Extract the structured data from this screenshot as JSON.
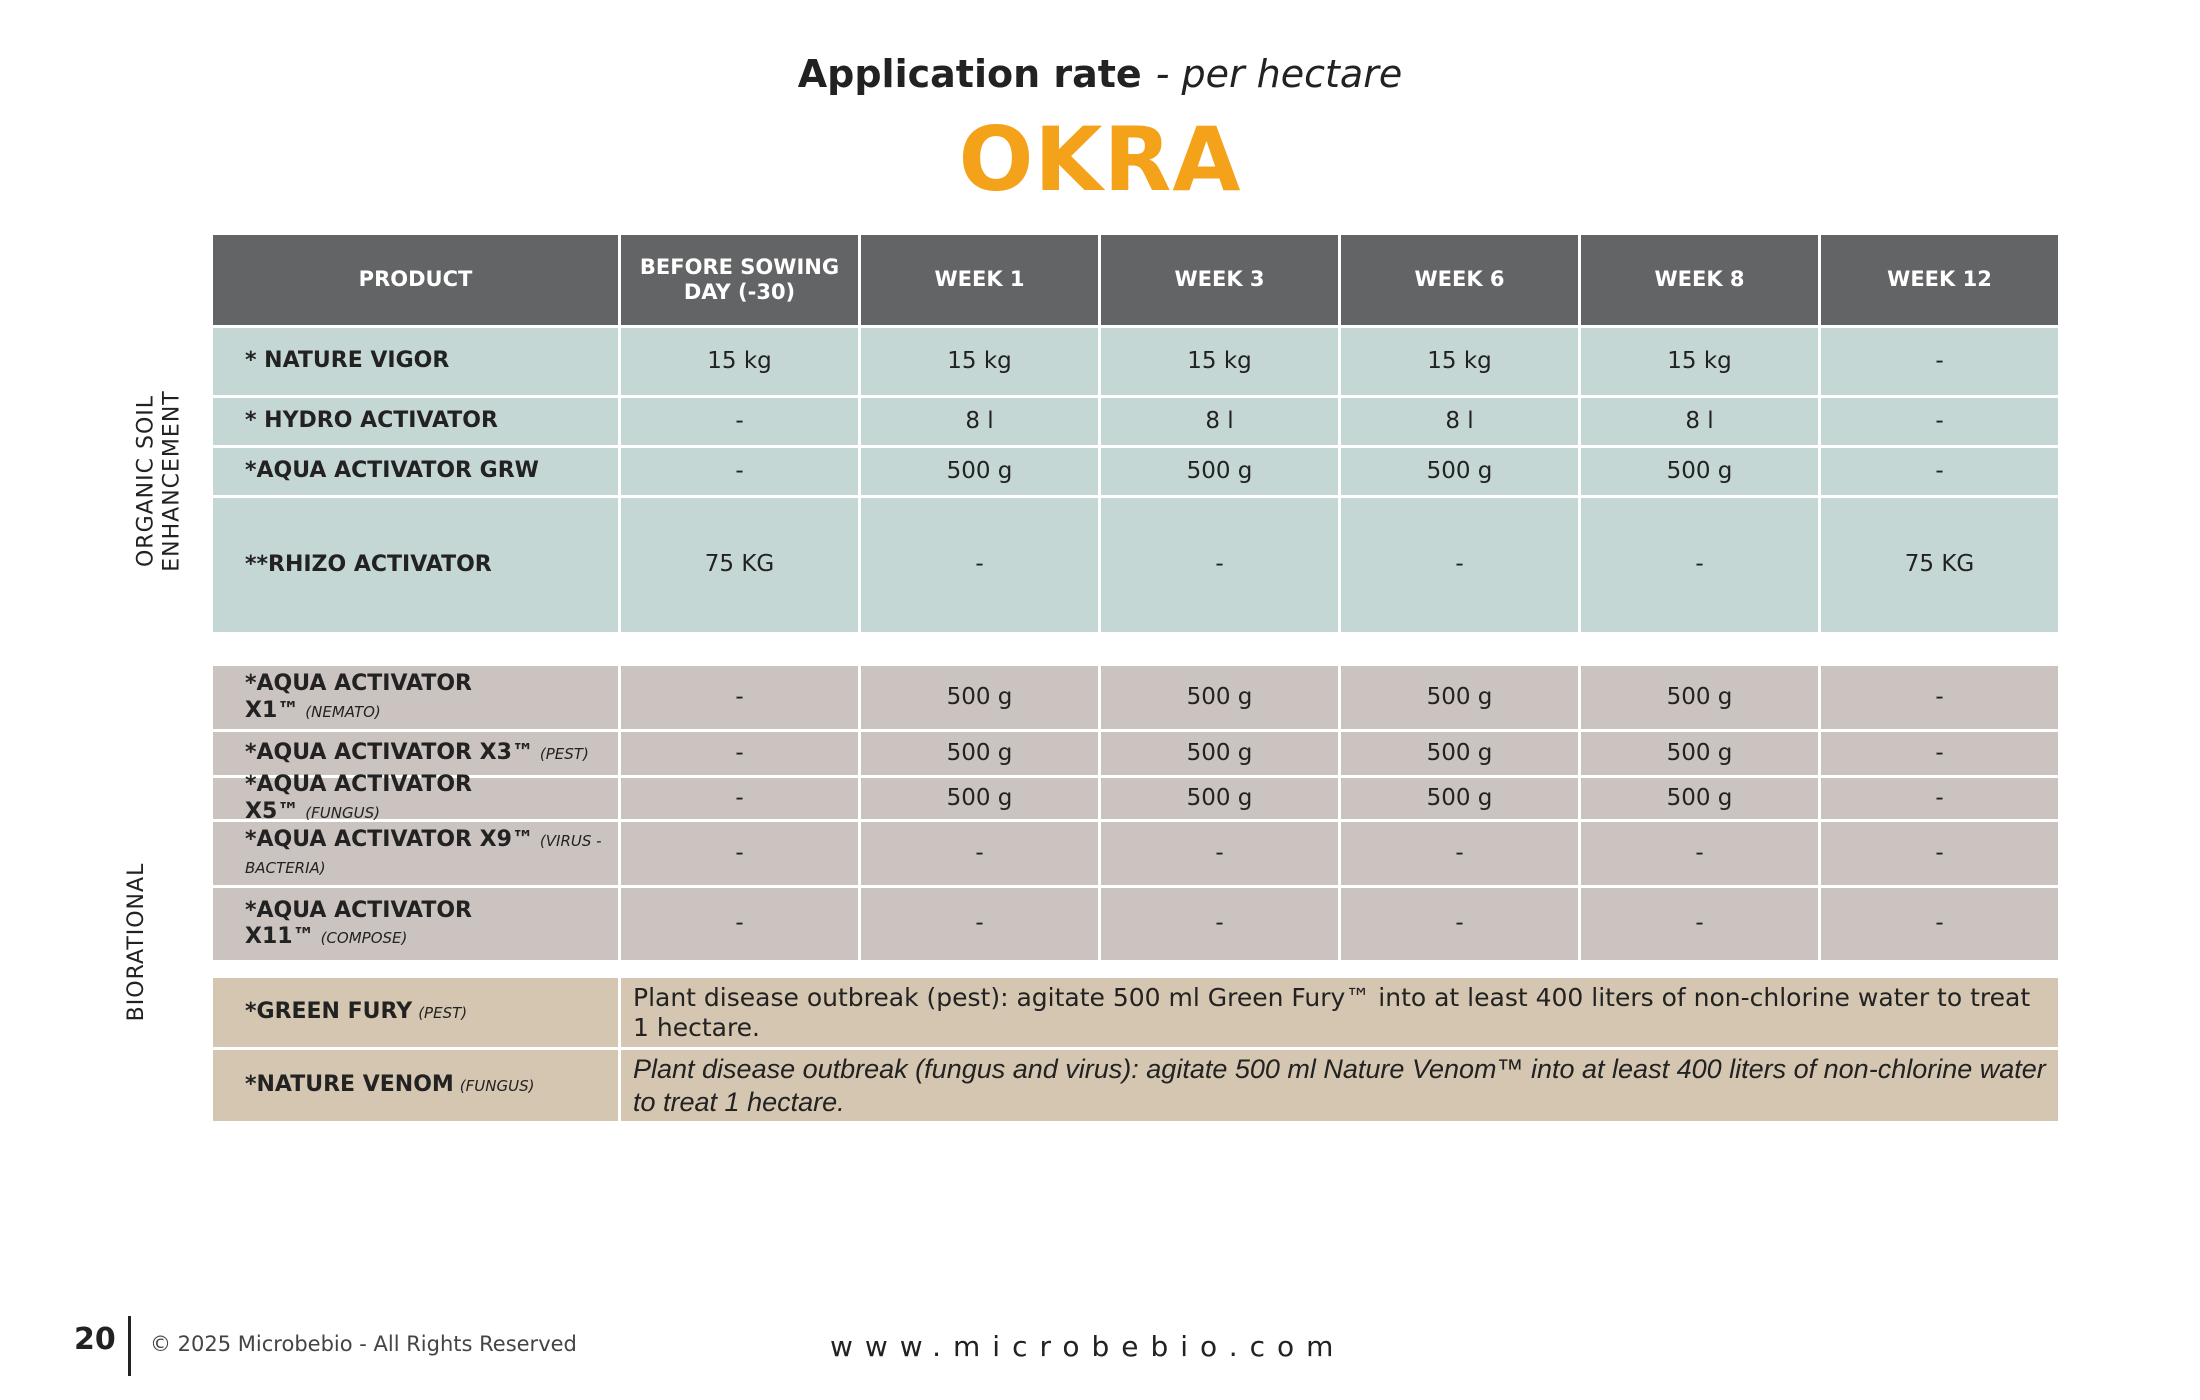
{
  "header": {
    "title": "Application rate",
    "subtitle": "- per hectare",
    "crop": "OKRA"
  },
  "table": {
    "columns": [
      "PRODUCT",
      "BEFORE SOWING DAY (-30)",
      "WEEK 1",
      "WEEK 3",
      "WEEK 6",
      "WEEK 8",
      "WEEK 12"
    ],
    "groups": [
      {
        "label": "ORGANIC SOIL ENHANCEMENT",
        "rows": [
          {
            "product": "* NATURE VIGOR",
            "values": [
              "15 kg",
              "15 kg",
              "15 kg",
              "15 kg",
              "15 kg",
              "-"
            ]
          },
          {
            "product": "* HYDRO ACTIVATOR",
            "values": [
              "-",
              "8 l",
              "8 l",
              "8 l",
              "8 l",
              "-"
            ]
          },
          {
            "product": "*AQUA ACTIVATOR GRW",
            "values": [
              "-",
              "500 g",
              "500 g",
              "500 g",
              "500 g",
              "-"
            ]
          },
          {
            "product": "**RHIZO ACTIVATOR",
            "values": [
              "75 KG",
              "-",
              "-",
              "-",
              "-",
              "75 KG"
            ]
          }
        ]
      },
      {
        "label": "BIORATIONAL",
        "rows": [
          {
            "product": "*AQUA ACTIVATOR X1™",
            "note": "(NEMATO)",
            "values": [
              "-",
              "500 g",
              "500 g",
              "500 g",
              "500 g",
              "-"
            ]
          },
          {
            "product": "*AQUA ACTIVATOR X3™",
            "note": "(PEST)",
            "values": [
              "-",
              "500 g",
              "500 g",
              "500 g",
              "500 g",
              "-"
            ]
          },
          {
            "product": "*AQUA ACTIVATOR X5™",
            "note": "(FUNGUS)",
            "values": [
              "-",
              "500 g",
              "500 g",
              "500 g",
              "500 g",
              "-"
            ]
          },
          {
            "product": "*AQUA ACTIVATOR X9™",
            "note": "(VIRUS - BACTERIA)",
            "values": [
              "-",
              "-",
              "-",
              "-",
              "-",
              "-"
            ]
          },
          {
            "product": "*AQUA ACTIVATOR X11™",
            "note": "(COMPOSE)",
            "values": [
              "-",
              "-",
              "-",
              "-",
              "-",
              "-"
            ]
          },
          {
            "product": "*GREEN FURY",
            "note": "(PEST)",
            "instruction": "Plant disease outbreak (pest): agitate 500 ml Green Fury™ into at least 400 liters of non-chlorine water to treat 1 hectare."
          },
          {
            "product": "*NATURE VENOM",
            "note": "(FUNGUS)",
            "instruction": "Plant disease outbreak (fungus and virus): agitate 500 ml Nature Venom™ into at least 400 liters of non-chlorine water to treat 1 hectare."
          }
        ]
      }
    ]
  },
  "footer": {
    "page": "20",
    "copyright": "© 2025 Microbebio - All Rights Reserved",
    "website": "www.microbebio.com"
  }
}
